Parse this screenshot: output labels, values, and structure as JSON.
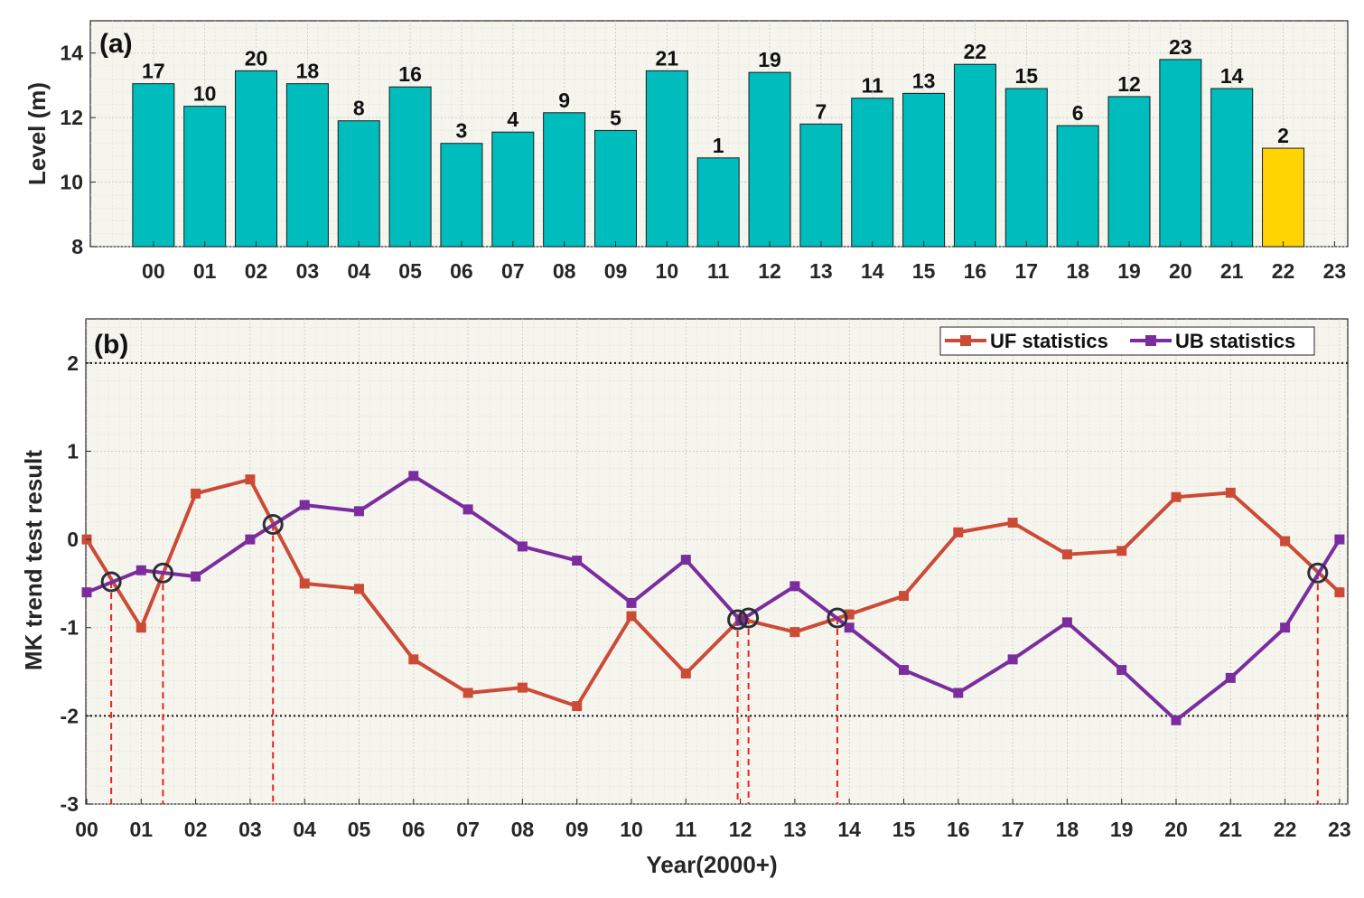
{
  "chart_data": [
    {
      "type": "bar",
      "panel_label": "(a)",
      "ylabel": "Level (m)",
      "ylim": [
        8,
        15
      ],
      "yticks": [
        "8",
        "10",
        "12",
        "14"
      ],
      "ytick_values": [
        8,
        10,
        12,
        14
      ],
      "categories": [
        "00",
        "01",
        "02",
        "03",
        "04",
        "05",
        "06",
        "07",
        "08",
        "09",
        "10",
        "11",
        "12",
        "13",
        "14",
        "15",
        "16",
        "17",
        "18",
        "19",
        "20",
        "21",
        "22",
        "23"
      ],
      "values": [
        13.05,
        12.35,
        13.45,
        13.05,
        11.9,
        12.95,
        11.2,
        11.55,
        12.15,
        11.6,
        13.45,
        10.75,
        13.4,
        11.8,
        12.6,
        12.75,
        13.65,
        12.9,
        11.75,
        12.65,
        13.8,
        12.9,
        11.05,
        null
      ],
      "ranks": [
        "17",
        "10",
        "20",
        "18",
        "8",
        "16",
        "3",
        "4",
        "9",
        "5",
        "21",
        "1",
        "19",
        "7",
        "11",
        "13",
        "22",
        "15",
        "6",
        "12",
        "23",
        "14",
        "2",
        ""
      ],
      "bar_color": "#00BDBD",
      "highlight_color": "#FFD400",
      "highlight_index": 22,
      "grid": true
    },
    {
      "type": "line",
      "panel_label": "(b)",
      "ylabel": "MK trend test result",
      "xlabel": "Year(2000+)",
      "ylim": [
        -3,
        2.5
      ],
      "yticks": [
        "-3",
        "-2",
        "-1",
        "0",
        "1",
        "2"
      ],
      "ytick_values": [
        -3,
        -2,
        -1,
        0,
        1,
        2
      ],
      "x": [
        "00",
        "01",
        "02",
        "03",
        "04",
        "05",
        "06",
        "07",
        "08",
        "09",
        "10",
        "11",
        "12",
        "13",
        "14",
        "15",
        "16",
        "17",
        "18",
        "19",
        "20",
        "21",
        "22",
        "23"
      ],
      "series": [
        {
          "name": "UF statistics",
          "color": "#CC4B37",
          "values": [
            0,
            -1.0,
            0.52,
            0.68,
            -0.5,
            -0.56,
            -1.36,
            -1.74,
            -1.68,
            -1.89,
            -0.87,
            -1.52,
            -0.9,
            -1.05,
            -0.85,
            -0.64,
            0.08,
            0.19,
            -0.17,
            -0.13,
            0.48,
            0.53,
            -0.02,
            -0.6
          ]
        },
        {
          "name": "UB statistics",
          "color": "#7B2D9E",
          "values": [
            -0.6,
            -0.35,
            -0.42,
            0,
            0.39,
            0.32,
            0.72,
            0.34,
            -0.08,
            -0.24,
            -0.72,
            -0.23,
            -0.92,
            -0.53,
            -1.0,
            -1.48,
            -1.74,
            -1.36,
            -0.94,
            -1.48,
            -2.05,
            -1.57,
            -1.0,
            0
          ]
        }
      ],
      "crossings_x": [
        0.45,
        1.4,
        3.42,
        11.95,
        12.15,
        13.78,
        22.6
      ],
      "crossings_y": [
        -0.48,
        -0.38,
        0.17,
        -0.91,
        -0.89,
        -0.89,
        -0.38
      ],
      "reference_lines": [
        2,
        -2
      ],
      "legend_position": "top-right",
      "grid": true
    }
  ]
}
